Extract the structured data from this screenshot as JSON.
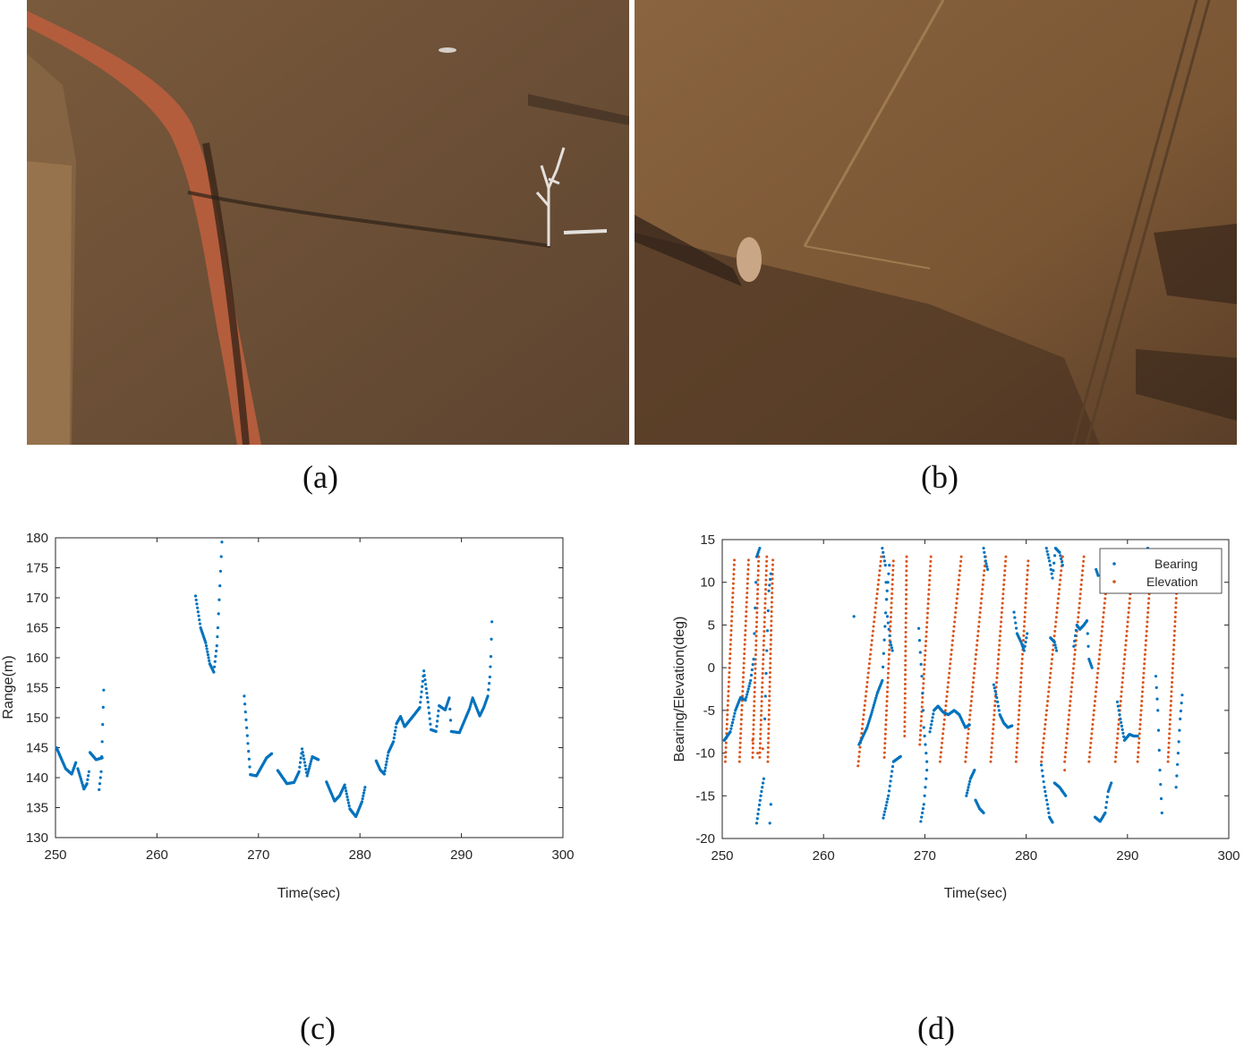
{
  "panels": {
    "a": {
      "label": "(a)"
    },
    "b": {
      "label": "(b)"
    },
    "c": {
      "label": "(c)"
    },
    "d": {
      "label": "(d)"
    }
  },
  "photos": {
    "a": {
      "icon": "aerial-photo-dirt-road-dead-tree",
      "colors": {
        "field": "#6e5236",
        "road": "#b25e3c"
      }
    },
    "b": {
      "icon": "aerial-photo-field-fence-track",
      "colors": {
        "field": "#7a5634",
        "scrub": "#4a3322"
      }
    }
  },
  "chart_data": [
    {
      "type": "scatter",
      "panel": "(c)",
      "xlabel": "Time(sec)",
      "ylabel": "Range(m)",
      "xlim": [
        250,
        300
      ],
      "ylim": [
        130,
        180
      ],
      "xticks": [
        "250",
        "260",
        "270",
        "280",
        "290",
        "300"
      ],
      "yticks": [
        "130",
        "135",
        "140",
        "145",
        "150",
        "155",
        "160",
        "165",
        "170",
        "175",
        "180"
      ],
      "grid": false,
      "color": "#0072bd",
      "segments": [
        [
          [
            250.1,
            145
          ],
          [
            251.0,
            141.5
          ],
          [
            251.6,
            140.6
          ],
          [
            252.0,
            142.5
          ]
        ],
        [
          [
            252.2,
            141.5
          ],
          [
            252.8,
            138.1
          ],
          [
            253.1,
            139
          ],
          [
            253.3,
            141
          ]
        ],
        [
          [
            253.4,
            144.2
          ],
          [
            254.0,
            143
          ],
          [
            254.6,
            143.3
          ]
        ],
        [
          [
            254.3,
            138
          ],
          [
            254.5,
            141
          ],
          [
            254.6,
            146
          ],
          [
            254.75,
            154.6
          ]
        ],
        [
          [
            263.8,
            170.3
          ],
          [
            264.3,
            165
          ],
          [
            264.8,
            162.5
          ],
          [
            265.2,
            159
          ],
          [
            265.6,
            157.6
          ],
          [
            265.9,
            162
          ],
          [
            266.0,
            165
          ],
          [
            266.2,
            172
          ],
          [
            266.4,
            179.3
          ]
        ],
        [
          [
            268.6,
            153.6
          ],
          [
            268.9,
            147
          ],
          [
            269.2,
            140.5
          ],
          [
            269.8,
            140.3
          ],
          [
            270.2,
            141.5
          ],
          [
            270.8,
            143.3
          ],
          [
            271.3,
            144
          ]
        ],
        [
          [
            271.9,
            141.2
          ],
          [
            272.8,
            139
          ],
          [
            273.5,
            139.2
          ],
          [
            274.0,
            141
          ],
          [
            274.3,
            144.8
          ],
          [
            274.8,
            140.3
          ],
          [
            275.3,
            143.5
          ],
          [
            275.9,
            143
          ]
        ],
        [
          [
            276.7,
            139.3
          ],
          [
            277.5,
            136.1
          ],
          [
            278.0,
            137
          ],
          [
            278.5,
            138.8
          ],
          [
            279.0,
            134.8
          ],
          [
            279.6,
            133.5
          ],
          [
            280.2,
            136
          ],
          [
            280.5,
            138.4
          ]
        ],
        [
          [
            281.6,
            142.8
          ],
          [
            282.0,
            141.3
          ],
          [
            282.4,
            140.6
          ],
          [
            282.8,
            144.2
          ],
          [
            283.3,
            146
          ],
          [
            283.6,
            149
          ],
          [
            284.0,
            150.2
          ],
          [
            284.4,
            148.5
          ],
          [
            285.4,
            150.6
          ],
          [
            285.9,
            151.7
          ],
          [
            286.3,
            157.8
          ],
          [
            286.7,
            152.6
          ],
          [
            287.0,
            148
          ],
          [
            287.5,
            147.7
          ],
          [
            287.8,
            152
          ],
          [
            288.4,
            151.3
          ],
          [
            288.8,
            153.3
          ],
          [
            289.0,
            147.7
          ],
          [
            289.8,
            147.5
          ],
          [
            290.8,
            151.5
          ],
          [
            291.1,
            153.3
          ],
          [
            291.8,
            150.3
          ],
          [
            292.2,
            151.7
          ],
          [
            292.6,
            153.6
          ],
          [
            292.8,
            156.8
          ],
          [
            292.9,
            160.2
          ],
          [
            293.0,
            166
          ]
        ]
      ]
    },
    {
      "type": "scatter",
      "panel": "(d)",
      "xlabel": "Time(sec)",
      "ylabel": "Bearing/Elevation(deg)",
      "xlim": [
        250,
        300
      ],
      "ylim": [
        -20,
        15
      ],
      "xticks": [
        "250",
        "260",
        "270",
        "280",
        "290",
        "300"
      ],
      "yticks": [
        "-20",
        "-15",
        "-10",
        "-5",
        "0",
        "5",
        "10",
        "15"
      ],
      "grid": false,
      "legend": {
        "position": "top-right"
      },
      "series": [
        {
          "name": "Bearing",
          "color": "#0072bd",
          "segments": [
            [
              [
                250.2,
                -8.5
              ],
              [
                250.8,
                -7.5
              ],
              [
                251.3,
                -5
              ],
              [
                251.8,
                -3.5
              ],
              [
                252.3,
                -3.8
              ],
              [
                252.8,
                -1.5
              ],
              [
                253.1,
                1
              ],
              [
                253.4,
                13
              ],
              [
                253.7,
                14
              ]
            ],
            [
              [
                253.4,
                -18.2
              ],
              [
                253.8,
                -15
              ],
              [
                254.1,
                -13
              ]
            ],
            [
              [
                254.2,
                -6
              ],
              [
                254.4,
                2
              ],
              [
                254.6,
                9
              ],
              [
                254.8,
                11
              ]
            ],
            [
              [
                254.7,
                -18.2
              ],
              [
                254.8,
                -16
              ]
            ],
            [
              [
                263.0,
                6
              ]
            ],
            [
              [
                263.5,
                -9
              ],
              [
                264.3,
                -7
              ],
              [
                264.7,
                -5.5
              ],
              [
                265.3,
                -3
              ],
              [
                265.8,
                -1.5
              ],
              [
                266.2,
                8
              ],
              [
                266.5,
                12
              ]
            ],
            [
              [
                265.8,
                14
              ],
              [
                266.1,
                12
              ],
              [
                266.3,
                6
              ],
              [
                266.6,
                3
              ],
              [
                266.8,
                2
              ]
            ],
            [
              [
                265.9,
                -17.6
              ],
              [
                266.4,
                -15
              ],
              [
                266.9,
                -11
              ],
              [
                267.6,
                -10.4
              ]
            ],
            [
              [
                269.4,
                4.6
              ],
              [
                269.7,
                -1
              ],
              [
                269.9,
                -7
              ],
              [
                270.2,
                -11
              ]
            ],
            [
              [
                269.6,
                -18
              ],
              [
                269.9,
                -16
              ],
              [
                270.2,
                -12
              ]
            ],
            [
              [
                270.5,
                -7.5
              ],
              [
                270.9,
                -5
              ],
              [
                271.3,
                -4.5
              ],
              [
                271.8,
                -5.2
              ],
              [
                272.3,
                -5.5
              ],
              [
                272.9,
                -5
              ],
              [
                273.4,
                -5.5
              ],
              [
                274.0,
                -7
              ],
              [
                274.4,
                -6.7
              ]
            ],
            [
              [
                274.1,
                -15
              ],
              [
                274.5,
                -13
              ],
              [
                274.9,
                -12
              ]
            ],
            [
              [
                275.0,
                -15.5
              ],
              [
                275.4,
                -16.5
              ],
              [
                275.8,
                -17
              ]
            ],
            [
              [
                275.8,
                14
              ],
              [
                276.0,
                12.5
              ],
              [
                276.2,
                11.5
              ]
            ],
            [
              [
                276.8,
                -2
              ],
              [
                277.1,
                -3.5
              ],
              [
                277.4,
                -5.5
              ],
              [
                277.8,
                -6.5
              ],
              [
                278.2,
                -7
              ],
              [
                278.6,
                -6.8
              ]
            ],
            [
              [
                278.8,
                6.5
              ],
              [
                279.1,
                4
              ],
              [
                279.5,
                3
              ],
              [
                279.8,
                2
              ],
              [
                280.1,
                4
              ]
            ],
            [
              [
                281.5,
                -11.4
              ],
              [
                281.8,
                -14
              ],
              [
                282.1,
                -16
              ],
              [
                282.3,
                -17.5
              ],
              [
                282.6,
                -18.1
              ]
            ],
            [
              [
                282.0,
                14
              ],
              [
                282.3,
                12.5
              ],
              [
                282.6,
                10.5
              ],
              [
                282.9,
                14
              ],
              [
                283.3,
                13.5
              ],
              [
                283.6,
                12
              ]
            ],
            [
              [
                282.4,
                3.5
              ],
              [
                282.8,
                3
              ],
              [
                283.0,
                2
              ]
            ],
            [
              [
                282.8,
                -13.5
              ],
              [
                283.3,
                -14
              ],
              [
                283.6,
                -14.5
              ],
              [
                283.9,
                -15
              ]
            ],
            [
              [
                284.7,
                2.5
              ],
              [
                285.0,
                5
              ],
              [
                285.3,
                4.5
              ],
              [
                285.7,
                5
              ],
              [
                286.0,
                5.5
              ],
              [
                286.2,
                1
              ],
              [
                286.5,
                0
              ]
            ],
            [
              [
                286.9,
                11.5
              ],
              [
                287.1,
                10.8
              ]
            ],
            [
              [
                286.8,
                -17.5
              ],
              [
                287.3,
                -18
              ],
              [
                287.8,
                -17
              ],
              [
                288.1,
                -14.5
              ],
              [
                288.4,
                -13.5
              ]
            ],
            [
              [
                289.0,
                -4
              ],
              [
                289.3,
                -6
              ],
              [
                289.7,
                -8.5
              ],
              [
                290.2,
                -7.8
              ],
              [
                290.6,
                -8
              ],
              [
                291.0,
                -8
              ]
            ],
            [
              [
                291.0,
                10
              ],
              [
                291.3,
                11
              ]
            ],
            [
              [
                292.0,
                14
              ]
            ],
            [
              [
                292.8,
                -1
              ],
              [
                293.0,
                -5
              ],
              [
                293.2,
                -12
              ],
              [
                293.4,
                -17
              ]
            ],
            [
              [
                294.8,
                -14
              ],
              [
                295.0,
                -10
              ],
              [
                295.2,
                -6
              ],
              [
                295.4,
                -3.2
              ]
            ]
          ]
        },
        {
          "name": "Elevation",
          "color": "#d95319",
          "sweeps": [
            [
              250.3,
              -11,
              251.2,
              12.6
            ],
            [
              251.7,
              -11,
              252.6,
              12.6
            ],
            [
              253.0,
              -10.5,
              253.6,
              13
            ],
            [
              253.7,
              -10.5,
              254.4,
              13
            ],
            [
              254.5,
              -11,
              255.0,
              12.6
            ],
            [
              263.4,
              -11.5,
              265.7,
              13
            ],
            [
              266.0,
              -10.5,
              266.9,
              12.5
            ],
            [
              268.0,
              -8,
              268.2,
              13
            ],
            [
              269.5,
              -9,
              270.6,
              13
            ],
            [
              271.5,
              -11,
              273.6,
              13
            ],
            [
              274.0,
              -11,
              276.0,
              13
            ],
            [
              276.5,
              -11,
              278.0,
              13
            ],
            [
              279.0,
              -11,
              280.2,
              12.5
            ],
            [
              281.5,
              -11,
              283.6,
              13
            ],
            [
              283.8,
              -11,
              285.7,
              13
            ],
            [
              286.2,
              -11,
              288.2,
              13
            ],
            [
              288.8,
              -11,
              290.6,
              13
            ],
            [
              291.0,
              -11,
              292.4,
              13
            ],
            [
              294.0,
              -11,
              295.0,
              12.5
            ]
          ],
          "isolated": [
            [
              253.0,
              -8.5
            ],
            [
              253.5,
              -10
            ],
            [
              254.0,
              -9.5
            ],
            [
              283.8,
              -12
            ],
            [
              291.5,
              12.5
            ],
            [
              294.8,
              12.5
            ]
          ]
        }
      ]
    }
  ]
}
